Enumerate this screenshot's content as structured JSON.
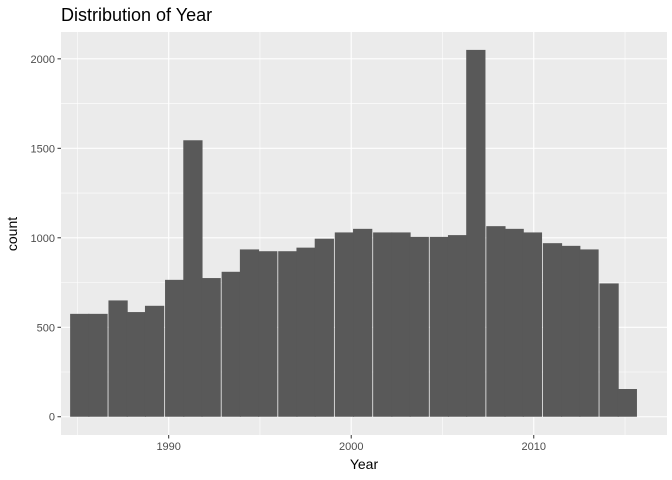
{
  "chart_data": {
    "type": "bar",
    "title": "Distribution of Year",
    "xlabel": "Year",
    "ylabel": "count",
    "x_ticks": [
      1990,
      2000,
      2010
    ],
    "y_ticks": [
      0,
      500,
      1000,
      1500,
      2000
    ],
    "xlim": [
      1984.1,
      2017.3
    ],
    "ylim": [
      -102,
      2150
    ],
    "bin_width": 1.0323,
    "bins": [
      {
        "x_start": 1984.6,
        "count": 575
      },
      {
        "x_start": 1985.6,
        "count": 575
      },
      {
        "x_start": 1986.7,
        "count": 650
      },
      {
        "x_start": 1987.7,
        "count": 585
      },
      {
        "x_start": 1988.7,
        "count": 620
      },
      {
        "x_start": 1989.8,
        "count": 765
      },
      {
        "x_start": 1990.8,
        "count": 1545
      },
      {
        "x_start": 1991.8,
        "count": 775
      },
      {
        "x_start": 1992.9,
        "count": 810
      },
      {
        "x_start": 1993.9,
        "count": 935
      },
      {
        "x_start": 1994.9,
        "count": 925
      },
      {
        "x_start": 1996.0,
        "count": 925
      },
      {
        "x_start": 1997.0,
        "count": 945
      },
      {
        "x_start": 1998.0,
        "count": 995
      },
      {
        "x_start": 1999.1,
        "count": 1030
      },
      {
        "x_start": 2000.1,
        "count": 1050
      },
      {
        "x_start": 2001.2,
        "count": 1030
      },
      {
        "x_start": 2002.2,
        "count": 1030
      },
      {
        "x_start": 2003.2,
        "count": 1005
      },
      {
        "x_start": 2004.3,
        "count": 1005
      },
      {
        "x_start": 2005.3,
        "count": 1015
      },
      {
        "x_start": 2006.3,
        "count": 2050
      },
      {
        "x_start": 2007.4,
        "count": 1065
      },
      {
        "x_start": 2008.4,
        "count": 1050
      },
      {
        "x_start": 2009.4,
        "count": 1030
      },
      {
        "x_start": 2010.5,
        "count": 970
      },
      {
        "x_start": 2011.5,
        "count": 955
      },
      {
        "x_start": 2012.5,
        "count": 935
      },
      {
        "x_start": 2013.6,
        "count": 745
      },
      {
        "x_start": 2014.6,
        "count": 155
      }
    ],
    "grid": true,
    "colors": {
      "panel_background": "#ebebeb",
      "grid_major": "#ffffff",
      "bar_fill": "#595959",
      "tick_text": "#4d4d4d"
    }
  }
}
